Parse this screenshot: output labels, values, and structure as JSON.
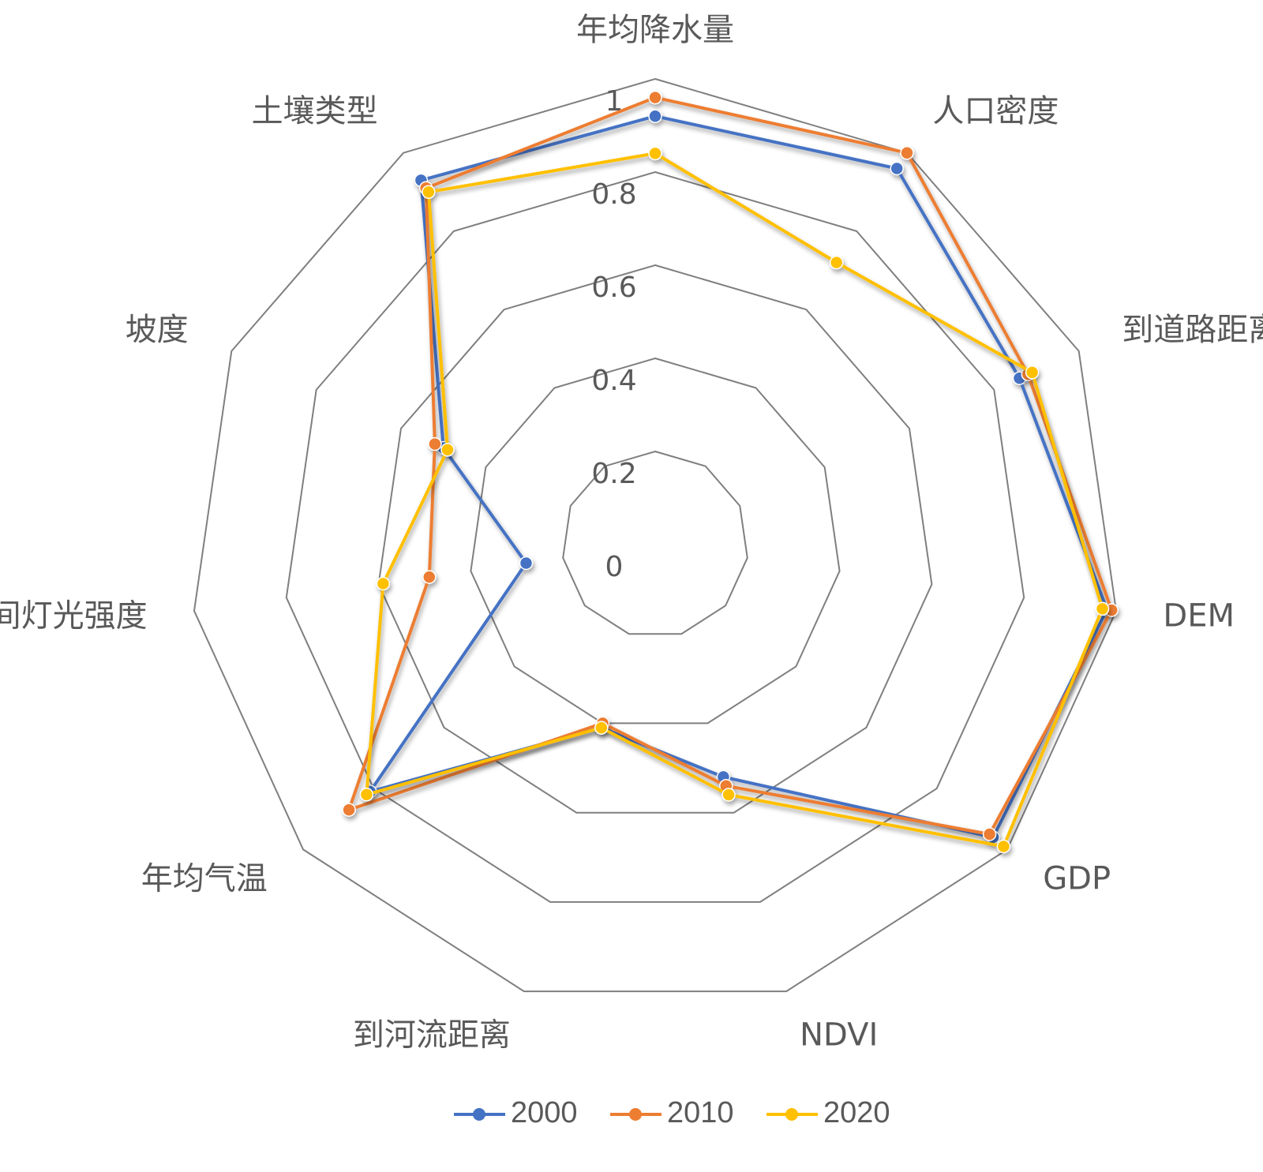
{
  "chart_data": {
    "type": "radar",
    "title": "",
    "categories": [
      "年均降水量",
      "人口密度",
      "到道路距离",
      "DEM",
      "GDP",
      "NDVI",
      "到河流距离",
      "年均气温",
      "夜间灯光强度",
      "坡度",
      "土壤类型"
    ],
    "ticks": [
      "0",
      "0.2",
      "0.4",
      "0.6",
      "0.8",
      "1"
    ],
    "rlim": [
      0,
      1
    ],
    "grid": true,
    "legend": "bottom",
    "series": [
      {
        "name": "2000",
        "color": "#4472C4",
        "values": [
          0.92,
          0.96,
          0.86,
          0.98,
          0.96,
          0.52,
          0.41,
          0.81,
          0.28,
          0.5,
          0.93
        ]
      },
      {
        "name": "2010",
        "color": "#ED7D31",
        "values": [
          0.96,
          1.0,
          0.88,
          0.99,
          0.95,
          0.54,
          0.4,
          0.87,
          0.49,
          0.52,
          0.91
        ]
      },
      {
        "name": "2020",
        "color": "#FFC000",
        "values": [
          0.84,
          0.72,
          0.89,
          0.97,
          0.99,
          0.56,
          0.41,
          0.82,
          0.59,
          0.49,
          0.9
        ]
      }
    ]
  }
}
